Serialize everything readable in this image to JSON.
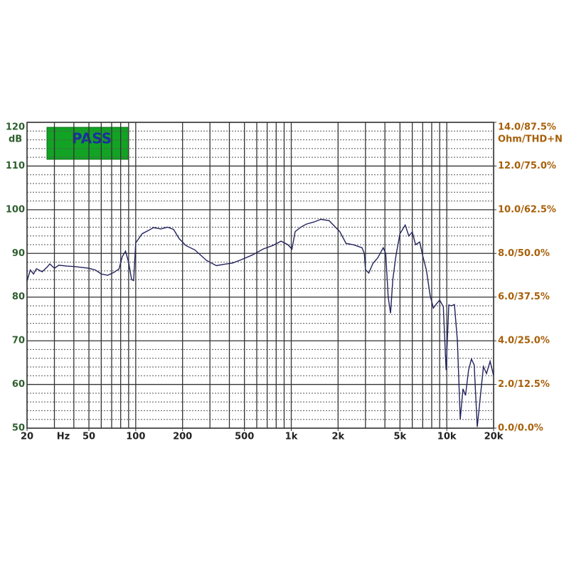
{
  "chart_data": {
    "type": "line",
    "log_x": true,
    "grid": true,
    "annotation": "PASS",
    "y_unit": "dB",
    "y2_unit": "Ohm/THD+N",
    "x_unit": "Hz",
    "color": "#22225e",
    "x": [
      20,
      21,
      22,
      23,
      25,
      27,
      28,
      30,
      32,
      36,
      40,
      45,
      50,
      55,
      60,
      66,
      72,
      78,
      82,
      86,
      90,
      94,
      97,
      100,
      110,
      120,
      130,
      145,
      160,
      175,
      190,
      210,
      240,
      285,
      330,
      370,
      420,
      480,
      560,
      660,
      760,
      860,
      950,
      1010,
      1060,
      1150,
      1250,
      1400,
      1550,
      1750,
      1900,
      2050,
      2250,
      2500,
      2850,
      2950,
      3000,
      3150,
      3350,
      3600,
      3900,
      4050,
      4200,
      4350,
      4500,
      4700,
      5000,
      5400,
      5700,
      6000,
      6300,
      6700,
      7000,
      7400,
      7800,
      8200,
      8600,
      9000,
      9500,
      9900,
      10300,
      10700,
      11200,
      11700,
      12200,
      12700,
      13200,
      13800,
      14400,
      15000,
      15700,
      16400,
      17200,
      18000,
      19000,
      20000
    ],
    "values": [
      83.7,
      86.2,
      85.3,
      86.5,
      85.8,
      86.9,
      87.6,
      86.6,
      87.3,
      87.1,
      87.0,
      86.8,
      86.6,
      86.2,
      85.3,
      85.0,
      85.6,
      86.4,
      89.3,
      90.5,
      88.0,
      84.0,
      83.8,
      92.4,
      94.5,
      95.2,
      95.9,
      95.6,
      96.0,
      95.5,
      93.4,
      91.8,
      90.8,
      88.4,
      87.2,
      87.5,
      87.8,
      88.6,
      89.6,
      91.0,
      91.8,
      92.8,
      92.0,
      91.0,
      95.0,
      96.0,
      96.7,
      97.2,
      97.8,
      97.5,
      96.2,
      95.0,
      92.3,
      92.0,
      91.3,
      90.0,
      86.3,
      85.5,
      87.7,
      89.0,
      91.3,
      90.0,
      80.0,
      76.3,
      84.0,
      89.3,
      94.5,
      96.5,
      94.0,
      94.9,
      92.0,
      92.6,
      89.5,
      86.1,
      80.5,
      77.5,
      78.5,
      79.3,
      77.8,
      63.3,
      78.2,
      78.0,
      78.3,
      70.0,
      52.0,
      59.0,
      57.5,
      63.3,
      65.8,
      64.5,
      50.3,
      57.0,
      64.1,
      62.5,
      65.3,
      62.0
    ],
    "xlim": [
      20,
      20000
    ],
    "xticks": [
      {
        "value": 20,
        "label": "20"
      },
      {
        "value": 50,
        "label": "50"
      },
      {
        "value": 100,
        "label": "100"
      },
      {
        "value": 200,
        "label": "200"
      },
      {
        "value": 500,
        "label": "500"
      },
      {
        "value": 1000,
        "label": "1k"
      },
      {
        "value": 2000,
        "label": "2k"
      },
      {
        "value": 5000,
        "label": "5k"
      },
      {
        "value": 10000,
        "label": "10k"
      },
      {
        "value": 20000,
        "label": "20k"
      }
    ],
    "xgrid": [
      20,
      30,
      40,
      50,
      60,
      70,
      80,
      90,
      100,
      200,
      300,
      400,
      500,
      600,
      700,
      800,
      900,
      1000,
      2000,
      3000,
      4000,
      5000,
      6000,
      7000,
      8000,
      9000,
      10000,
      20000
    ],
    "ylim": [
      50,
      120
    ],
    "yticks": [
      50,
      60,
      70,
      80,
      90,
      100,
      110,
      120
    ],
    "yminor": [
      52,
      54,
      56,
      58,
      62,
      64,
      66,
      68,
      72,
      74,
      76,
      78,
      82,
      84,
      86,
      88,
      92,
      94,
      96,
      98,
      102,
      104,
      106,
      108,
      112,
      114,
      116,
      118
    ],
    "y2lim": [
      0,
      14
    ],
    "y2ticks": [
      {
        "value": 0,
        "label": "0.0/0.0%"
      },
      {
        "value": 2,
        "label": "2.0/12.5%"
      },
      {
        "value": 4,
        "label": "4.0/25.0%"
      },
      {
        "value": 6,
        "label": "6.0/37.5%"
      },
      {
        "value": 8,
        "label": "8.0/50.0%"
      },
      {
        "value": 10,
        "label": "10.0/62.5%"
      },
      {
        "value": 12,
        "label": "12.0/75.0%"
      },
      {
        "value": 14,
        "label": "14.0/87.5%"
      }
    ]
  }
}
